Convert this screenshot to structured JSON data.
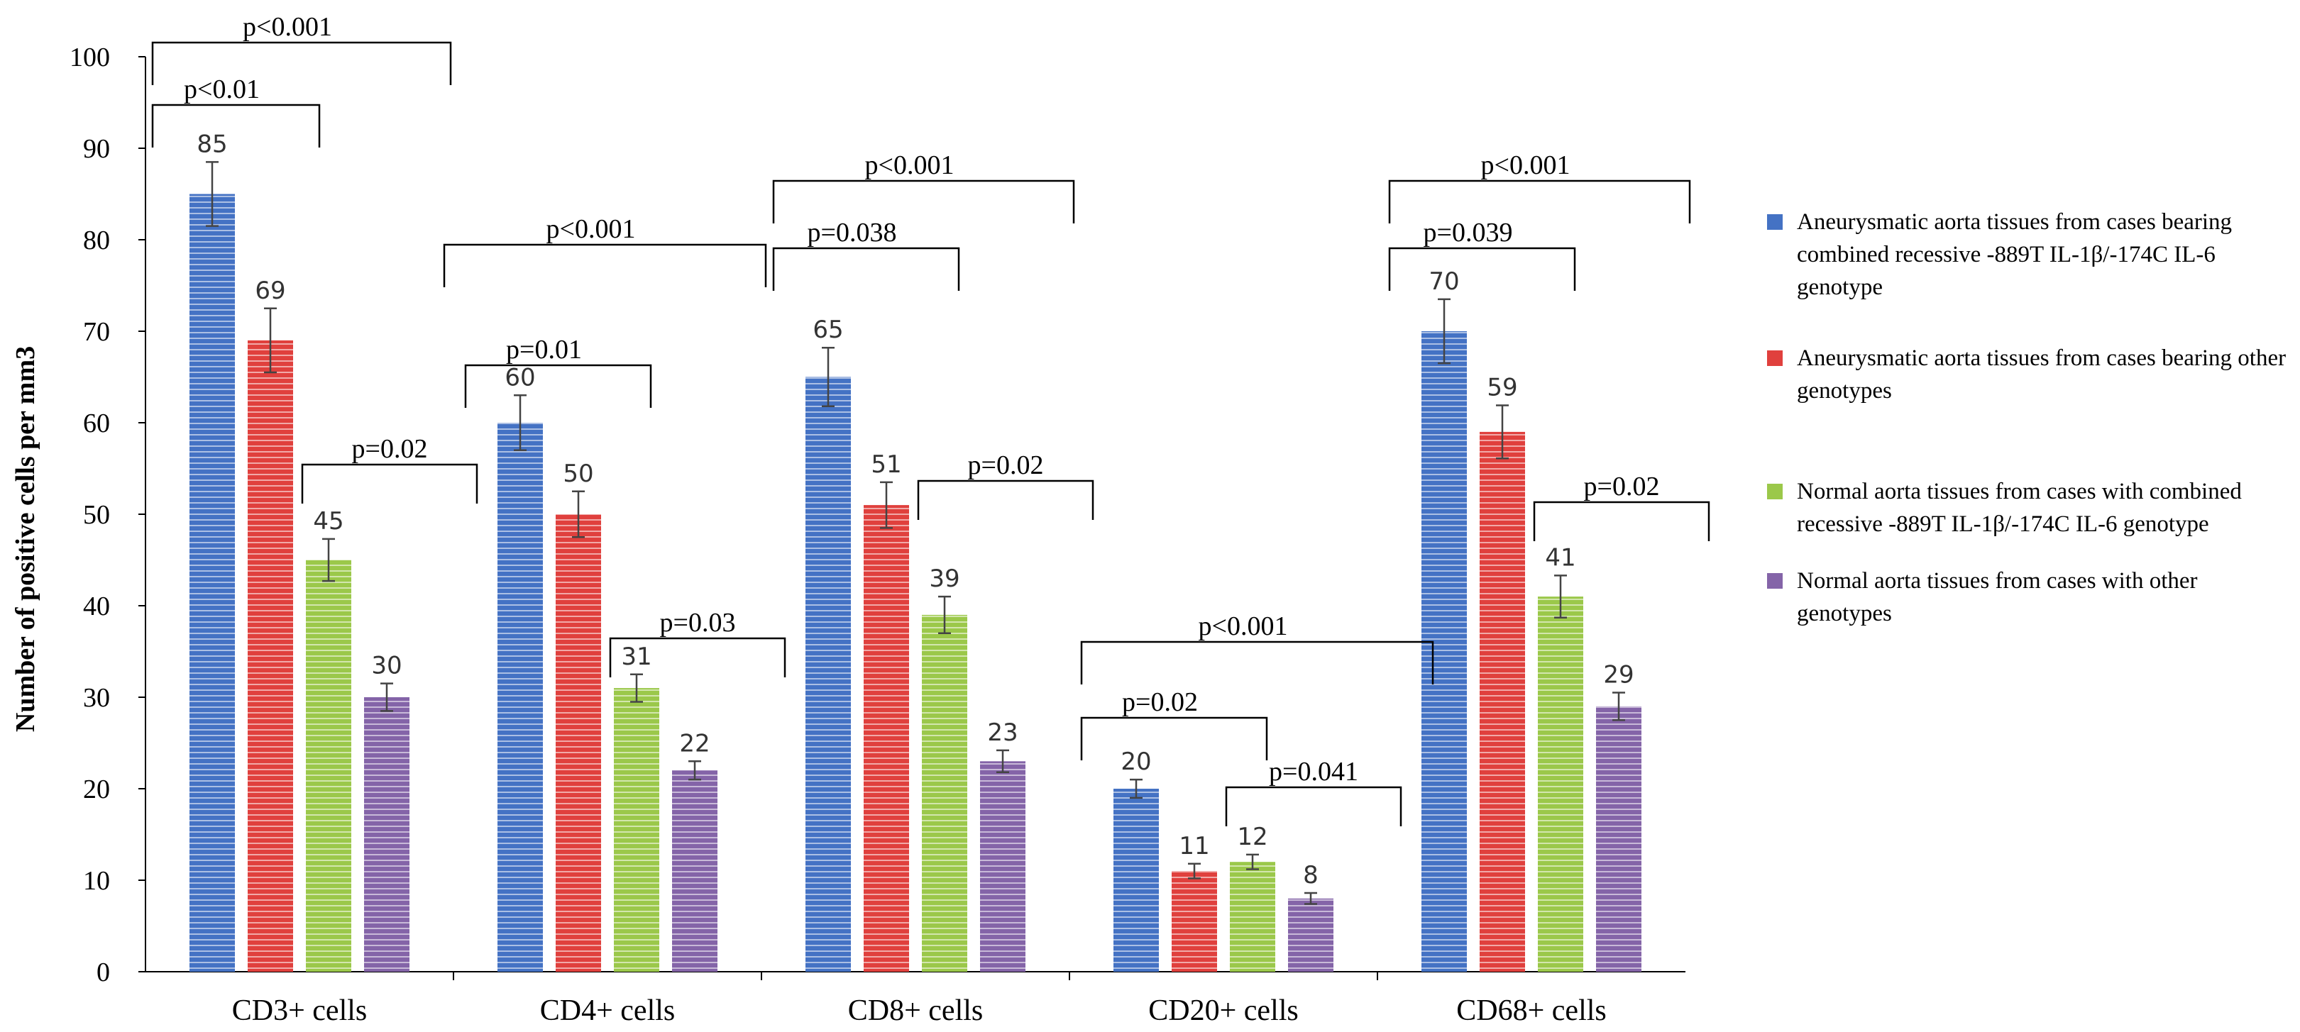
{
  "chart_data": {
    "type": "bar",
    "ylabel": "Number of  positive cells per mm3",
    "ylim": [
      0,
      100
    ],
    "yticks": [
      0,
      10,
      20,
      30,
      40,
      50,
      60,
      70,
      80,
      90,
      100
    ],
    "categories": [
      "CD3+ cells",
      "CD4+ cells",
      "CD8+ cells",
      "CD20+ cells",
      "CD68+ cells"
    ],
    "series": [
      {
        "name": "Aneurysmatic aorta tissues from cases bearing combined recessive -889T IL-1β/-174C IL-6 genotype",
        "color": "#4472c4",
        "values": [
          85,
          60,
          65,
          20,
          70
        ],
        "errors": [
          3.5,
          3.0,
          3.2,
          1.0,
          3.5
        ],
        "labels": [
          "85",
          "60",
          "65",
          "20",
          "70"
        ]
      },
      {
        "name": " Aneurysmatic aorta tissues from cases bearing other genotypes",
        "color": "#e0403d",
        "values": [
          69,
          50,
          51,
          11,
          59
        ],
        "errors": [
          3.5,
          2.5,
          2.5,
          0.8,
          2.9
        ],
        "labels": [
          "69",
          "50",
          "51",
          "11",
          "59"
        ]
      },
      {
        "name": "Normal aorta tissues from cases with combined recessive -889T IL-1β/-174C IL-6 genotype",
        "color": "#9bc84a",
        "values": [
          45,
          31,
          39,
          12,
          41
        ],
        "errors": [
          2.3,
          1.5,
          2.0,
          0.8,
          2.3
        ],
        "labels": [
          "45",
          "31",
          "39",
          "12",
          "41"
        ]
      },
      {
        "name": "Normal aorta tissues from cases with other genotypes",
        "color": "#8464a8",
        "values": [
          30,
          22,
          23,
          8,
          29
        ],
        "errors": [
          1.5,
          1.0,
          1.2,
          0.6,
          1.5
        ],
        "labels": [
          "30",
          "22",
          "23",
          "8",
          "29"
        ]
      }
    ],
    "annotations": [
      {
        "text": "p<0.001",
        "cat": 0,
        "from": 0,
        "to": 2
      },
      {
        "text": "p<0.01",
        "cat": 0,
        "from": 0,
        "to": 1
      },
      {
        "text": "p=0.02",
        "cat": 0,
        "from": 2,
        "to": 3
      },
      {
        "text": "p<0.001",
        "cat": 1,
        "from": 0,
        "to": 2
      },
      {
        "text": "p=0.01",
        "cat": 1,
        "from": 0,
        "to": 1
      },
      {
        "text": "p=0.03",
        "cat": 1,
        "from": 2,
        "to": 3
      },
      {
        "text": "p<0.001",
        "cat": 2,
        "from": 0,
        "to": 2
      },
      {
        "text": "p=0.038",
        "cat": 2,
        "from": 0,
        "to": 1
      },
      {
        "text": "p=0.02",
        "cat": 2,
        "from": 2,
        "to": 3
      },
      {
        "text": "p<0.001",
        "cat": 3,
        "from": 0,
        "to": 2
      },
      {
        "text": "p=0.02",
        "cat": 3,
        "from": 0,
        "to": 1
      },
      {
        "text": "p=0.041",
        "cat": 3,
        "from": 2,
        "to": 3
      },
      {
        "text": "p<0.001",
        "cat": 4,
        "from": 0,
        "to": 2
      },
      {
        "text": "p=0.039",
        "cat": 4,
        "from": 0,
        "to": 1
      },
      {
        "text": "p=0.02",
        "cat": 4,
        "from": 2,
        "to": 3
      }
    ],
    "legend_position": "right"
  }
}
